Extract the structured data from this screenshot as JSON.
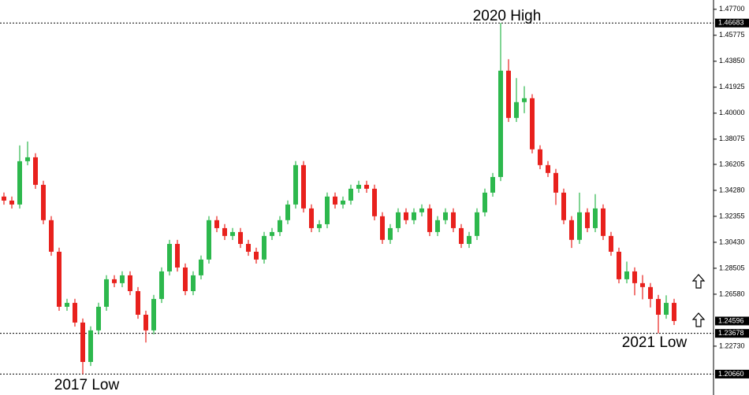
{
  "chart_data": {
    "type": "candlestick",
    "up_color": "#2db84d",
    "down_color": "#e8211d",
    "ylim": [
      1.1911,
      1.4839
    ],
    "yticks": [
      {
        "value": 1.477,
        "label": "1.47700"
      },
      {
        "value": 1.45775,
        "label": "1.45775"
      },
      {
        "value": 1.4385,
        "label": "1.43850"
      },
      {
        "value": 1.41925,
        "label": "1.41925"
      },
      {
        "value": 1.4,
        "label": "1.40000"
      },
      {
        "value": 1.38075,
        "label": "1.38075"
      },
      {
        "value": 1.36205,
        "label": "1.36205"
      },
      {
        "value": 1.3428,
        "label": "1.34280"
      },
      {
        "value": 1.32355,
        "label": "1.32355"
      },
      {
        "value": 1.3043,
        "label": "1.30430"
      },
      {
        "value": 1.28505,
        "label": "1.28505"
      },
      {
        "value": 1.2658,
        "label": "1.26580"
      },
      {
        "value": 1.2273,
        "label": "1.22730"
      }
    ],
    "levels": [
      {
        "value": 1.46683,
        "label": "1.46683",
        "dashed": true
      },
      {
        "value": 1.24596,
        "label": "1.24596",
        "dashed": false
      },
      {
        "value": 1.23678,
        "label": "1.23678",
        "dashed": true
      },
      {
        "value": 1.2066,
        "label": "1.20660",
        "dashed": true
      }
    ],
    "annotations": [
      "2020 High",
      "2017 Low",
      "2021 Low"
    ],
    "open": [
      1.3382,
      1.3352,
      1.3323,
      1.3644,
      1.3673,
      1.3469,
      1.3207,
      1.2973,
      1.2565,
      1.2594,
      1.2448,
      1.2156,
      1.239,
      1.2565,
      1.2769,
      1.274,
      1.2798,
      1.2681,
      1.2506,
      1.239,
      1.2623,
      1.2827,
      1.3031,
      1.2856,
      1.2681,
      1.2798,
      1.2915,
      1.3207,
      1.3148,
      1.309,
      1.3119,
      1.3031,
      1.2973,
      1.2915,
      1.309,
      1.3119,
      1.3207,
      1.3323,
      1.3615,
      1.3294,
      1.3148,
      1.3177,
      1.3382,
      1.3323,
      1.3352,
      1.344,
      1.3469,
      1.344,
      1.3236,
      1.3061,
      1.3148,
      1.3265,
      1.3207,
      1.3265,
      1.3294,
      1.3119,
      1.3207,
      1.3265,
      1.3148,
      1.3031,
      1.309,
      1.3265,
      1.3411,
      1.3527,
      1.4315,
      1.3965,
      1.4082,
      1.4111,
      1.3732,
      1.3615,
      1.3557,
      1.3411,
      1.3207,
      1.3061,
      1.3265,
      1.3148,
      1.3294,
      1.309,
      1.2973,
      1.2769,
      1.2827,
      1.274,
      1.2711,
      1.2623,
      1.2506,
      1.2594
    ],
    "high": [
      1.3412,
      1.3382,
      1.3761,
      1.379,
      1.3703,
      1.3499,
      1.3237,
      1.3003,
      1.2624,
      1.2624,
      1.2478,
      1.242,
      1.2595,
      1.2799,
      1.2799,
      1.2828,
      1.2828,
      1.2711,
      1.2536,
      1.2653,
      1.2857,
      1.3061,
      1.3061,
      1.2886,
      1.2828,
      1.2945,
      1.3237,
      1.3237,
      1.3178,
      1.3149,
      1.3149,
      1.3061,
      1.3003,
      1.312,
      1.3149,
      1.3237,
      1.3353,
      1.3645,
      1.3645,
      1.3324,
      1.3207,
      1.3412,
      1.3412,
      1.3382,
      1.347,
      1.3499,
      1.3499,
      1.347,
      1.3266,
      1.3178,
      1.3295,
      1.3295,
      1.3295,
      1.3324,
      1.3324,
      1.3237,
      1.3295,
      1.3295,
      1.3178,
      1.312,
      1.3295,
      1.3441,
      1.3557,
      1.46683,
      1.44,
      1.426,
      1.42,
      1.4141,
      1.3762,
      1.3645,
      1.3587,
      1.3441,
      1.3237,
      1.3411,
      1.3295,
      1.34,
      1.3324,
      1.312,
      1.3003,
      1.29,
      1.2857,
      1.28,
      1.2741,
      1.2653,
      1.265,
      1.2624
    ],
    "low": [
      1.3322,
      1.3293,
      1.3293,
      1.3614,
      1.3439,
      1.3177,
      1.2943,
      1.2535,
      1.2535,
      1.2418,
      1.2066,
      1.2126,
      1.236,
      1.2535,
      1.271,
      1.271,
      1.2651,
      1.2476,
      1.23,
      1.236,
      1.2593,
      1.2797,
      1.2826,
      1.2651,
      1.2651,
      1.2768,
      1.2885,
      1.3118,
      1.306,
      1.306,
      1.3001,
      1.2943,
      1.2885,
      1.2885,
      1.306,
      1.3089,
      1.3177,
      1.3293,
      1.3264,
      1.3118,
      1.3118,
      1.3147,
      1.3293,
      1.3293,
      1.3322,
      1.341,
      1.341,
      1.3206,
      1.3031,
      1.3031,
      1.3118,
      1.3177,
      1.3177,
      1.3235,
      1.3089,
      1.3089,
      1.3177,
      1.3118,
      1.3001,
      1.3001,
      1.306,
      1.3235,
      1.3381,
      1.3497,
      1.3935,
      1.3935,
      1.4,
      1.3702,
      1.3585,
      1.3527,
      1.332,
      1.3177,
      1.3001,
      1.3031,
      1.3118,
      1.3118,
      1.306,
      1.2943,
      1.2739,
      1.2739,
      1.265,
      1.262,
      1.256,
      1.23678,
      1.2476,
      1.243
    ],
    "close": [
      1.3352,
      1.3323,
      1.3644,
      1.3673,
      1.3469,
      1.3207,
      1.2973,
      1.2565,
      1.2594,
      1.2448,
      1.2156,
      1.239,
      1.2565,
      1.2769,
      1.274,
      1.2798,
      1.2681,
      1.2506,
      1.239,
      1.2623,
      1.2827,
      1.3031,
      1.2856,
      1.2681,
      1.2798,
      1.2915,
      1.3207,
      1.3148,
      1.309,
      1.3119,
      1.3031,
      1.2973,
      1.2915,
      1.309,
      1.3119,
      1.3207,
      1.3323,
      1.3615,
      1.3294,
      1.3148,
      1.3177,
      1.3382,
      1.3323,
      1.3352,
      1.344,
      1.3469,
      1.344,
      1.3236,
      1.3061,
      1.3148,
      1.3265,
      1.3207,
      1.3265,
      1.3294,
      1.3119,
      1.3207,
      1.3265,
      1.3148,
      1.3031,
      1.309,
      1.3265,
      1.3411,
      1.3527,
      1.4315,
      1.3965,
      1.4082,
      1.4111,
      1.3732,
      1.3615,
      1.3557,
      1.3411,
      1.3207,
      1.3061,
      1.3265,
      1.3148,
      1.3294,
      1.309,
      1.2973,
      1.2769,
      1.2827,
      1.274,
      1.2711,
      1.2623,
      1.2506,
      1.2594,
      1.24596
    ]
  }
}
